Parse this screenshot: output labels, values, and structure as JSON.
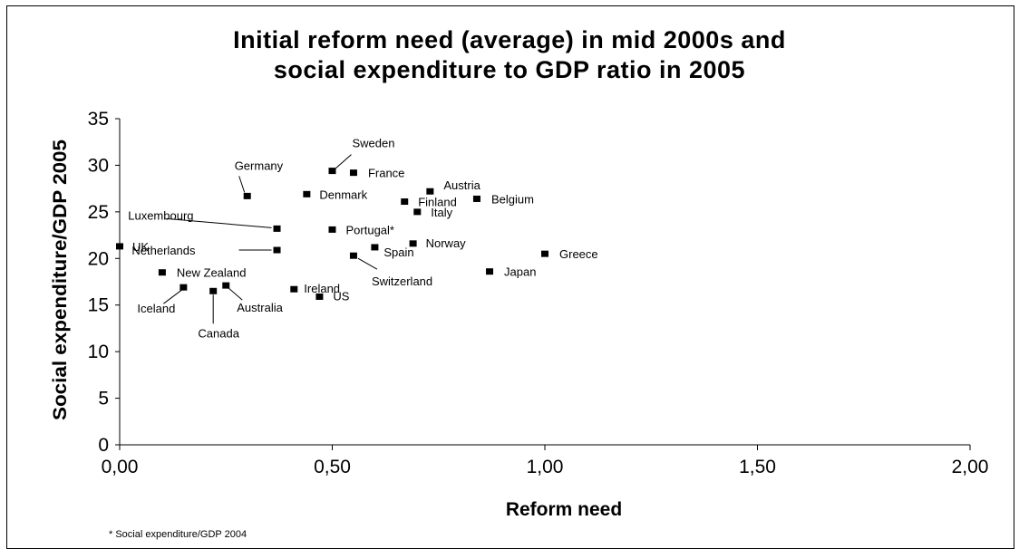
{
  "chart_data": {
    "type": "scatter",
    "title_lines": [
      "Initial reform need (average) in mid 2000s and",
      "social expenditure to GDP ratio in 2005"
    ],
    "xlabel": "Reform need",
    "ylabel": "Social expenditure/GDP 2005",
    "xlim": [
      0,
      2
    ],
    "ylim": [
      0,
      35
    ],
    "x_ticks": [
      "0,00",
      "0,50",
      "1,00",
      "1,50",
      "2,00"
    ],
    "y_ticks": [
      "0",
      "5",
      "10",
      "15",
      "20",
      "25",
      "30",
      "35"
    ],
    "grid": false,
    "legend": "none",
    "marker_color": "#000000",
    "points": [
      {
        "label": "UK",
        "x": 0.0,
        "y": 21.3
      },
      {
        "label": "New Zealand",
        "x": 0.1,
        "y": 18.5
      },
      {
        "label": "Iceland",
        "x": 0.15,
        "y": 16.9
      },
      {
        "label": "Canada",
        "x": 0.22,
        "y": 16.5
      },
      {
        "label": "Australia",
        "x": 0.25,
        "y": 17.1
      },
      {
        "label": "Germany",
        "x": 0.3,
        "y": 26.7
      },
      {
        "label": "Luxembourg",
        "x": 0.37,
        "y": 23.2
      },
      {
        "label": "Netherlands",
        "x": 0.37,
        "y": 20.9
      },
      {
        "label": "Ireland",
        "x": 0.41,
        "y": 16.7
      },
      {
        "label": "Denmark",
        "x": 0.44,
        "y": 26.9
      },
      {
        "label": "US",
        "x": 0.47,
        "y": 15.9
      },
      {
        "label": "Sweden",
        "x": 0.5,
        "y": 29.4
      },
      {
        "label": "Portugal*",
        "x": 0.5,
        "y": 23.1
      },
      {
        "label": "France",
        "x": 0.55,
        "y": 29.2
      },
      {
        "label": "Switzerland",
        "x": 0.55,
        "y": 20.3
      },
      {
        "label": "Spain",
        "x": 0.6,
        "y": 21.2
      },
      {
        "label": "Finland",
        "x": 0.67,
        "y": 26.1
      },
      {
        "label": "Norway",
        "x": 0.69,
        "y": 21.6
      },
      {
        "label": "Italy",
        "x": 0.7,
        "y": 25.0
      },
      {
        "label": "Austria",
        "x": 0.73,
        "y": 27.2
      },
      {
        "label": "Belgium",
        "x": 0.84,
        "y": 26.4
      },
      {
        "label": "Japan",
        "x": 0.87,
        "y": 18.6
      },
      {
        "label": "Greece",
        "x": 1.0,
        "y": 20.5
      }
    ],
    "footnote": "* Social expenditure/GDP 2004"
  }
}
